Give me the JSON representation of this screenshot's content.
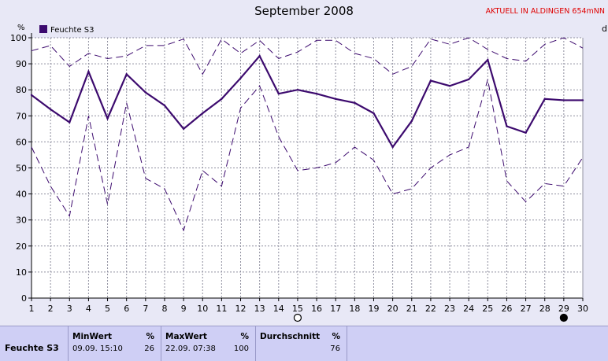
{
  "chart_data": {
    "type": "line",
    "title": "September 2008",
    "ylabel": "%",
    "ylim": [
      0,
      100
    ],
    "yticks": [
      0,
      10,
      20,
      30,
      40,
      50,
      60,
      70,
      80,
      90,
      100
    ],
    "xlim": [
      1,
      30
    ],
    "x": [
      1,
      2,
      3,
      4,
      5,
      6,
      7,
      8,
      9,
      10,
      11,
      12,
      13,
      14,
      15,
      16,
      17,
      18,
      19,
      20,
      21,
      22,
      23,
      24,
      25,
      26,
      27,
      28,
      29,
      30
    ],
    "grid": true,
    "legend": "top-left",
    "series": [
      {
        "name": "Feuchte S3",
        "role": "mean",
        "color": "#3c0a6e",
        "values": [
          78,
          72.5,
          67.5,
          87,
          69,
          86,
          79,
          74,
          65,
          71,
          76.5,
          84.5,
          93,
          78.5,
          80,
          78.5,
          76.5,
          75,
          71,
          58,
          68,
          83.5,
          81.5,
          84,
          91.5,
          66,
          63.5,
          76.5,
          76,
          76
        ]
      },
      {
        "role": "max",
        "color": "#3c0a6e",
        "values": [
          95,
          97,
          89,
          94,
          92,
          93,
          97,
          97,
          99.5,
          86,
          99.5,
          94,
          99,
          92,
          94.5,
          99,
          99,
          94,
          92,
          86,
          89,
          99.5,
          97.5,
          100,
          95.5,
          92,
          91,
          97.5,
          100,
          96
        ]
      },
      {
        "role": "min",
        "color": "#3c0a6e",
        "values": [
          58,
          43,
          31.5,
          70,
          36,
          75,
          46,
          42,
          26,
          49,
          43,
          73,
          81.5,
          62,
          49,
          50,
          52,
          58,
          53,
          40,
          42,
          50,
          55,
          58,
          84,
          45,
          37,
          44,
          43,
          54
        ]
      }
    ],
    "markers": [
      {
        "x": 15,
        "label": "○",
        "kind": "full-moon"
      },
      {
        "x": 29,
        "label": "●",
        "kind": "new-moon"
      }
    ]
  },
  "header": {
    "notice": "AKTUELL IN ALDINGEN 654mNN",
    "right_edge_label": "d"
  },
  "summary": {
    "series_name": "Feuchte S3",
    "min": {
      "label": "MinWert",
      "unit": "%",
      "when": "09.09.  15:10",
      "value": "26"
    },
    "max": {
      "label": "MaxWert",
      "unit": "%",
      "when": "22.09.  07:38",
      "value": "100"
    },
    "avg": {
      "label": "Durchschnitt",
      "unit": "%",
      "value": "76"
    }
  }
}
